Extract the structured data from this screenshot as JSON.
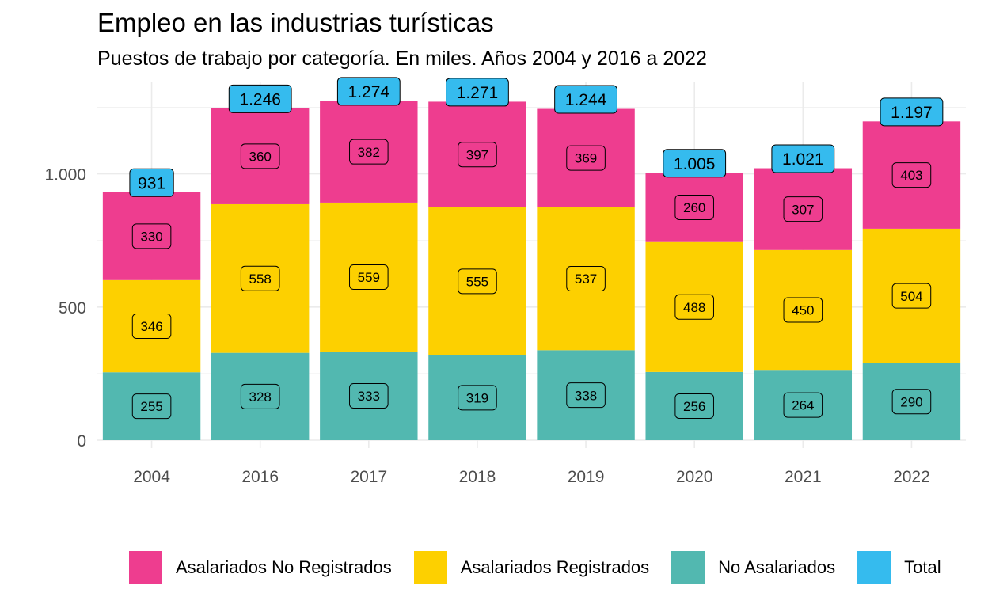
{
  "chart_data": {
    "type": "bar",
    "stacked": true,
    "title": "Empleo en las industrias turísticas",
    "subtitle": "Puestos de trabajo por categoría. En miles. Años 2004 y 2016 a 2022",
    "categories": [
      "2004",
      "2016",
      "2017",
      "2018",
      "2019",
      "2020",
      "2021",
      "2022"
    ],
    "series": [
      {
        "name": "No Asalariados",
        "color": "#52b8b0",
        "values": [
          255,
          328,
          333,
          319,
          338,
          256,
          264,
          290
        ]
      },
      {
        "name": "Asalariados Registrados",
        "color": "#fdd000",
        "values": [
          346,
          558,
          559,
          555,
          537,
          488,
          450,
          504
        ]
      },
      {
        "name": "Asalariados No Registrados",
        "color": "#ee3d8f",
        "values": [
          330,
          360,
          382,
          397,
          369,
          260,
          307,
          403
        ]
      }
    ],
    "totals": {
      "name": "Total",
      "color": "#35bbee",
      "labels": [
        "931",
        "1.246",
        "1.274",
        "1.271",
        "1.244",
        "1.005",
        "1.021",
        "1.197"
      ]
    },
    "value_labels": {
      "No Asalariados": [
        "255",
        "328",
        "333",
        "319",
        "338",
        "256",
        "264",
        "290"
      ],
      "Asalariados Registrados": [
        "346",
        "558",
        "559",
        "555",
        "537",
        "488",
        "450",
        "504"
      ],
      "Asalariados No Registrados": [
        "330",
        "360",
        "382",
        "397",
        "369",
        "260",
        "307",
        "403"
      ]
    },
    "yticks": [
      0,
      500,
      1000
    ],
    "ytick_labels": [
      "0",
      "500",
      "1.000"
    ],
    "ylim": [
      0,
      1340
    ],
    "grid": true,
    "legend_position": "bottom",
    "legend": [
      {
        "label": "Asalariados No Registrados",
        "color": "#ee3d8f"
      },
      {
        "label": "Asalariados Registrados",
        "color": "#fdd000"
      },
      {
        "label": "No Asalariados",
        "color": "#52b8b0"
      },
      {
        "label": "Total",
        "color": "#35bbee"
      }
    ]
  }
}
